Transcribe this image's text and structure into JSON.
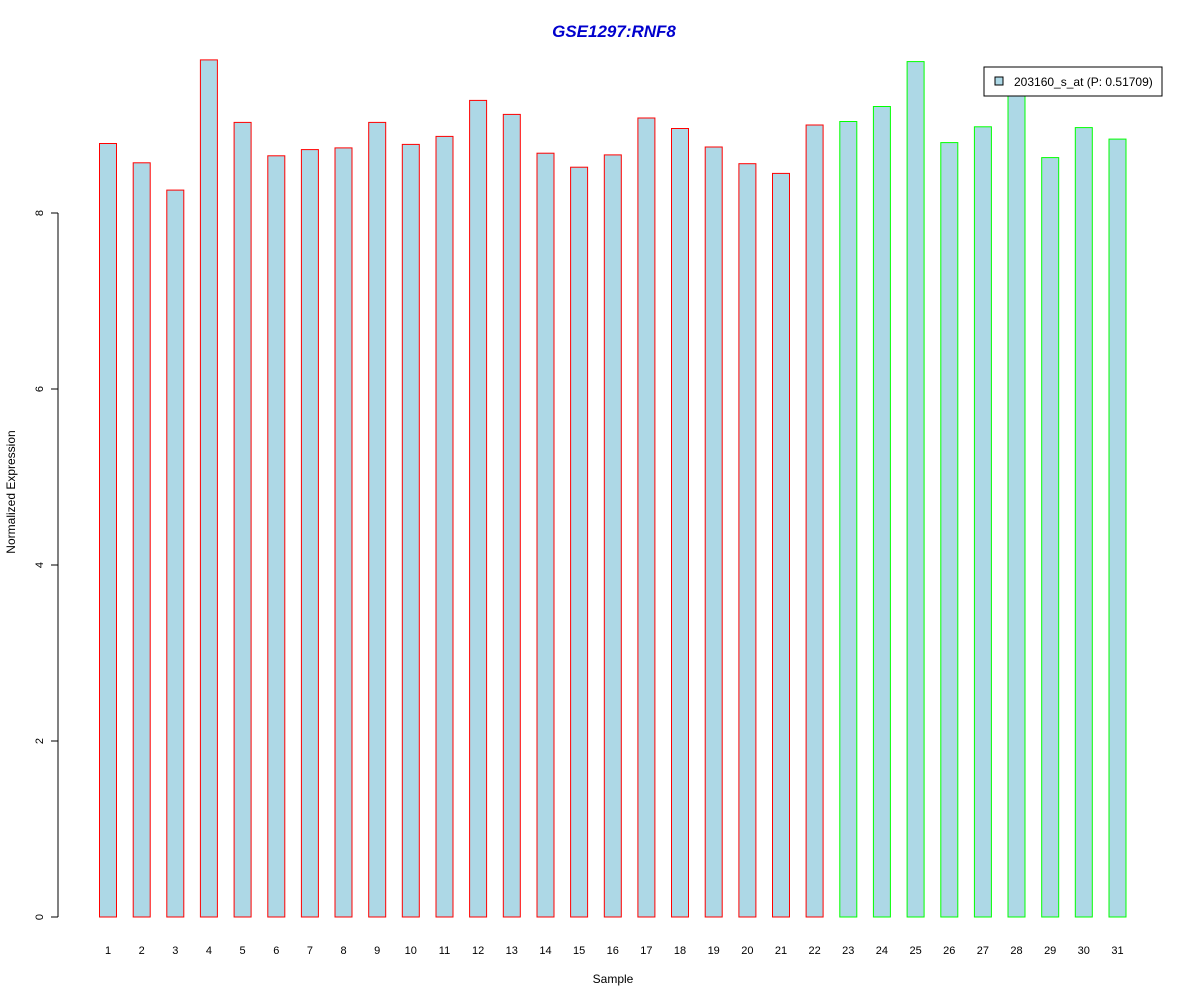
{
  "chart_data": {
    "type": "bar",
    "title": "GSE1297:RNF8",
    "xlabel": "Sample",
    "ylabel": "Normalized Expression",
    "ylim": [
      0,
      9.8
    ],
    "yticks": [
      0,
      2,
      4,
      6,
      8
    ],
    "categories": [
      "1",
      "2",
      "3",
      "4",
      "5",
      "6",
      "7",
      "8",
      "9",
      "10",
      "11",
      "12",
      "13",
      "14",
      "15",
      "16",
      "17",
      "18",
      "19",
      "20",
      "21",
      "22",
      "23",
      "24",
      "25",
      "26",
      "27",
      "28",
      "29",
      "30",
      "31"
    ],
    "values": [
      8.79,
      8.57,
      8.26,
      9.74,
      9.03,
      8.65,
      8.72,
      8.74,
      9.03,
      8.78,
      8.87,
      9.28,
      9.12,
      8.68,
      8.52,
      8.66,
      9.08,
      8.96,
      8.75,
      8.56,
      8.45,
      9.0,
      9.04,
      9.21,
      9.72,
      8.8,
      8.98,
      9.5,
      8.63,
      8.97,
      8.84
    ],
    "groups": [
      "red",
      "red",
      "red",
      "red",
      "red",
      "red",
      "red",
      "red",
      "red",
      "red",
      "red",
      "red",
      "red",
      "red",
      "red",
      "red",
      "red",
      "red",
      "red",
      "red",
      "red",
      "red",
      "green",
      "green",
      "green",
      "green",
      "green",
      "green",
      "green",
      "green",
      "green"
    ],
    "colors": {
      "fill": "#ADD8E6",
      "group_red": "#FF0000",
      "group_green": "#00FF00",
      "title": "#0000CD",
      "axis": "#000000"
    },
    "legend": {
      "position": "top-right",
      "entries": [
        {
          "label": "203160_s_at (P: 0.51709)",
          "color": "#ADD8E6"
        }
      ]
    },
    "grid": false
  }
}
